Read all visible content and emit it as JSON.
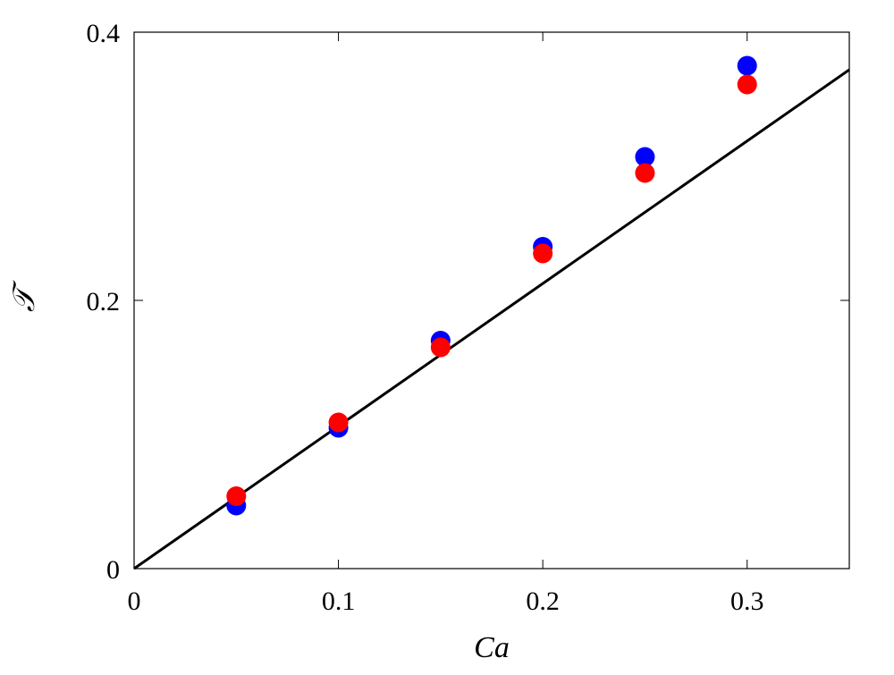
{
  "chart_data": {
    "type": "scatter",
    "title": "",
    "xlabel": "Ca",
    "ylabel": "𝒯",
    "xlim": [
      0,
      0.35
    ],
    "ylim": [
      0,
      0.4
    ],
    "xticks": [
      0,
      0.1,
      0.2,
      0.3
    ],
    "xtick_labels": [
      "0",
      "0.1",
      "0.2",
      "0.3"
    ],
    "yticks": [
      0,
      0.2,
      0.4
    ],
    "ytick_labels": [
      "0",
      "0.2",
      "0.4"
    ],
    "grid": false,
    "legend": "none",
    "series": [
      {
        "color": "#0000ff",
        "marker": "circle",
        "x": [
          0.05,
          0.1,
          0.15,
          0.2,
          0.25,
          0.3
        ],
        "y": [
          0.047,
          0.105,
          0.17,
          0.24,
          0.307,
          0.375
        ]
      },
      {
        "color": "#ff0000",
        "marker": "circle",
        "x": [
          0.05,
          0.1,
          0.15,
          0.2,
          0.25,
          0.3
        ],
        "y": [
          0.054,
          0.109,
          0.165,
          0.235,
          0.295,
          0.361
        ]
      }
    ],
    "line": {
      "color": "#000000",
      "x": [
        0,
        0.35
      ],
      "y": [
        0,
        0.372
      ]
    }
  }
}
